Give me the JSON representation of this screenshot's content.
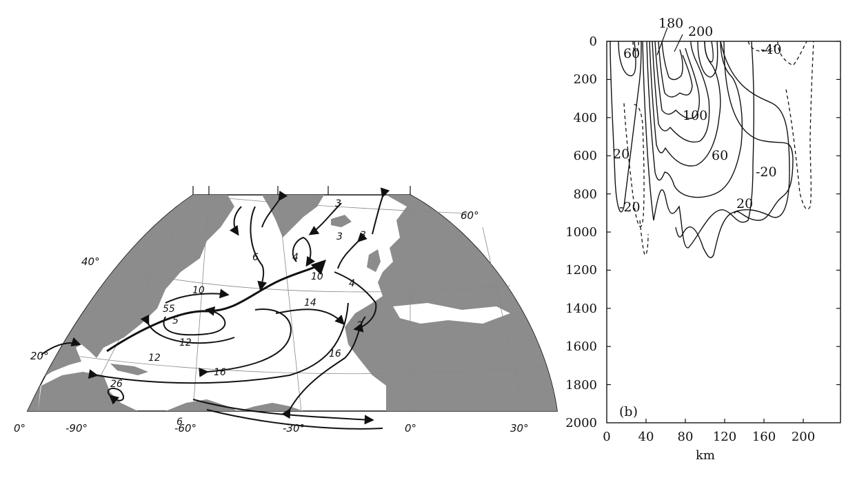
{
  "figure": {
    "map": {
      "lat_labels": [
        "60°",
        "40°",
        "20°",
        "0°"
      ],
      "lon_labels": [
        "-90°",
        "-60°",
        "-30°",
        "0°",
        "30°"
      ],
      "transport_labels": [
        "3",
        "3",
        "3",
        "6",
        "4",
        "10",
        "4",
        "10",
        "55",
        "5",
        "14",
        "2",
        "12",
        "12",
        "16",
        "16",
        "26",
        "6"
      ]
    },
    "section": {
      "panel_label": "(b)",
      "x_axis_label": "km",
      "x_ticks": [
        "0",
        "40",
        "80",
        "120",
        "160",
        "200"
      ],
      "y_ticks": [
        "0",
        "200",
        "400",
        "600",
        "800",
        "1000",
        "1200",
        "1400",
        "1600",
        "1800",
        "2000"
      ],
      "contour_labels": [
        "180",
        "200",
        "60",
        "-40",
        "100",
        "20",
        "60",
        "-20",
        "20",
        "-20"
      ]
    }
  },
  "colors": {
    "land": "#8c8c8c",
    "ink": "#111111",
    "ocean": "#ffffff"
  }
}
